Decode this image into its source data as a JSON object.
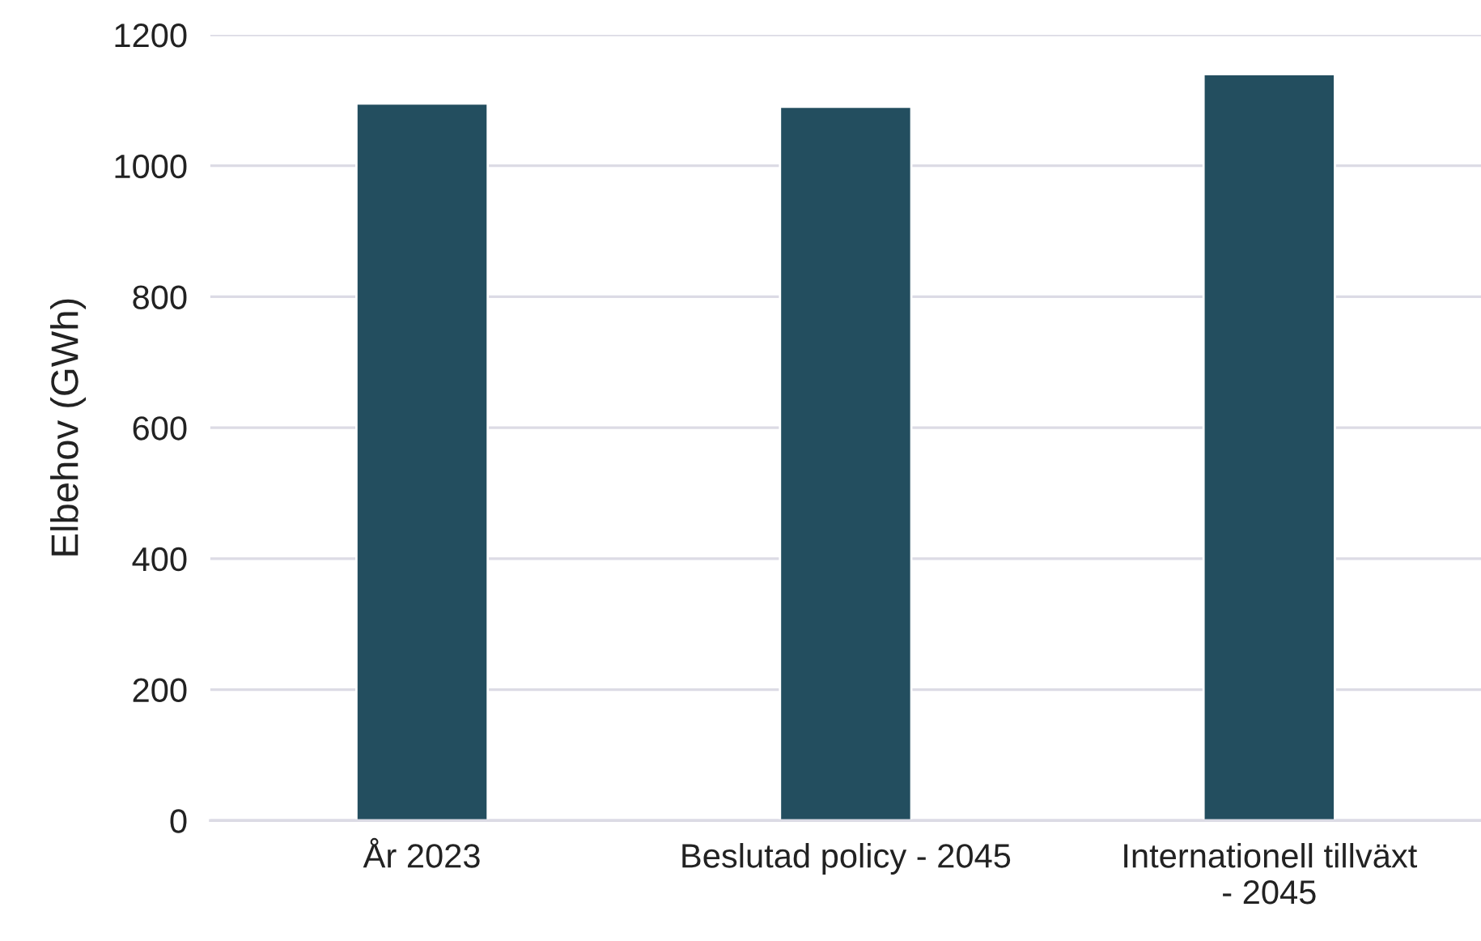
{
  "chart_data": {
    "type": "bar",
    "ylabel": "Elbehov (GWh)",
    "categories": [
      "År 2023",
      "Beslutad policy - 2045",
      "Internationell tillväxt - 2045"
    ],
    "values": [
      1095,
      1090,
      1140
    ],
    "color": "#234e5f",
    "ylim": [
      0,
      1200
    ],
    "yticks": [
      0,
      200,
      400,
      600,
      800,
      1000,
      1200
    ],
    "grid": "y"
  }
}
